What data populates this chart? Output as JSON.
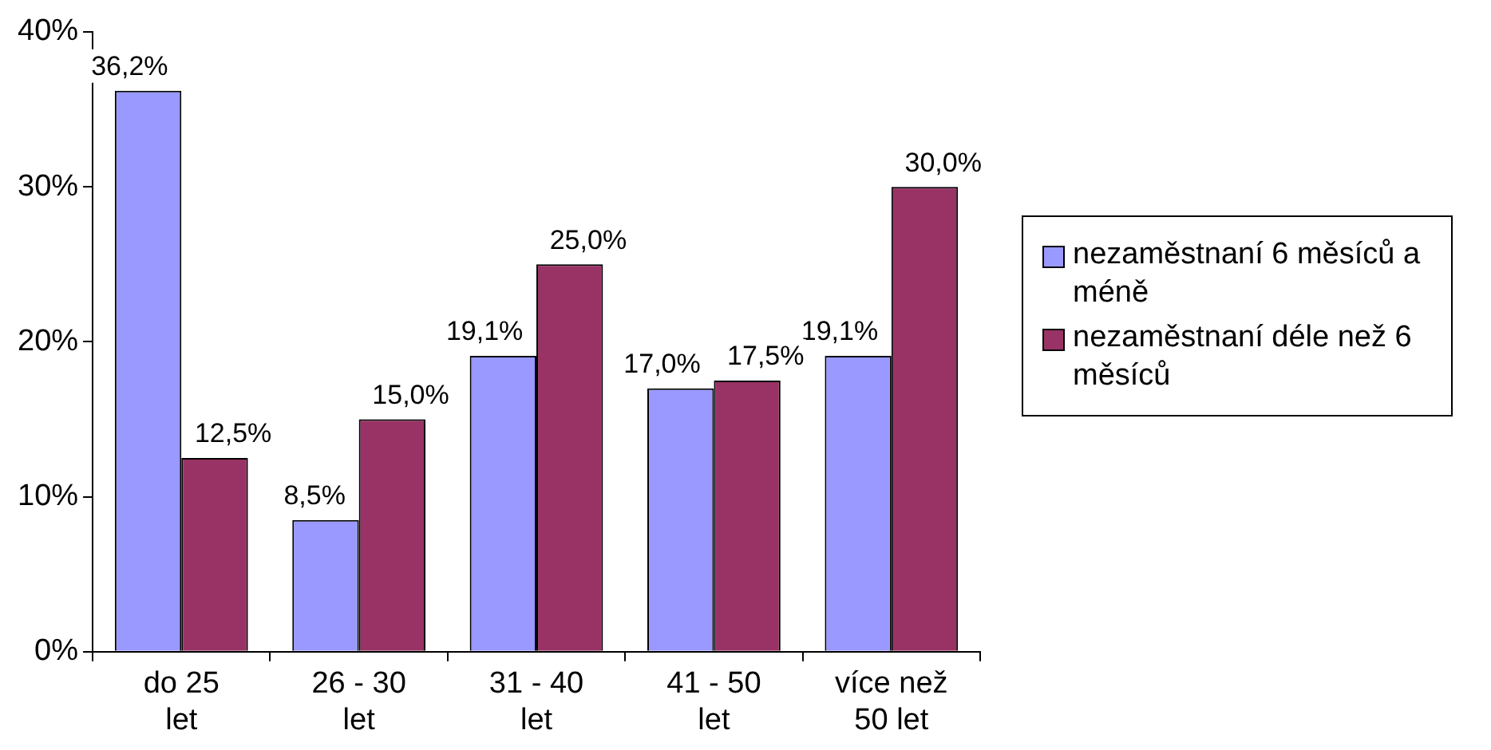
{
  "chart_data": {
    "type": "bar",
    "categories": [
      "do 25\nlet",
      "26 - 30\nlet",
      "31 - 40\nlet",
      "41 - 50\nlet",
      "více než\n50 let"
    ],
    "series": [
      {
        "name": "nezaměstnaní 6 měsíců a méně",
        "color": "#9999ff",
        "values": [
          36.2,
          8.5,
          19.1,
          17.0,
          19.1
        ],
        "value_labels": [
          "36,2%",
          "8,5%",
          "19,1%",
          "17,0%",
          "19,1%"
        ]
      },
      {
        "name": "nezaměstnaní déle než 6 měsíců",
        "color": "#993366",
        "values": [
          12.5,
          15.0,
          25.0,
          17.5,
          30.0
        ],
        "value_labels": [
          "12,5%",
          "15,0%",
          "25,0%",
          "17,5%",
          "30,0%"
        ]
      }
    ],
    "ylim": [
      0,
      40
    ],
    "yticks": [
      {
        "value": 0,
        "label": "0%"
      },
      {
        "value": 10,
        "label": "10%"
      },
      {
        "value": 20,
        "label": "20%"
      },
      {
        "value": 30,
        "label": "30%"
      },
      {
        "value": 40,
        "label": "40%"
      }
    ],
    "grid": false,
    "legend": "right"
  }
}
